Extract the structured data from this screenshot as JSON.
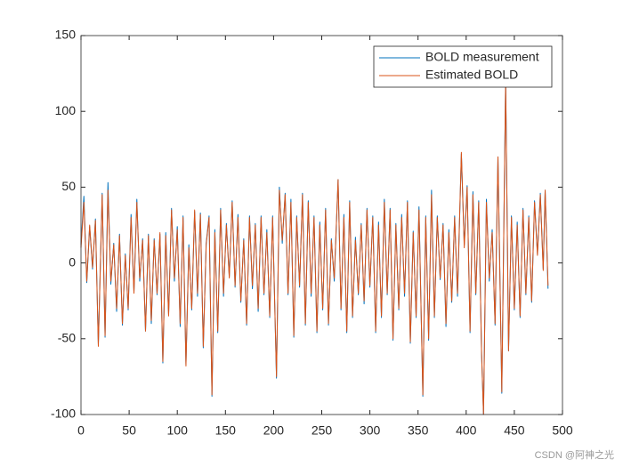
{
  "chart_data": {
    "type": "line",
    "x": [
      0,
      3,
      6,
      9,
      12,
      15,
      18,
      22,
      25,
      28,
      31,
      34,
      37,
      40,
      43,
      46,
      49,
      52,
      55,
      58,
      61,
      64,
      67,
      70,
      73,
      76,
      79,
      82,
      85,
      88,
      91,
      94,
      97,
      100,
      103,
      106,
      109,
      112,
      115,
      118,
      121,
      124,
      127,
      130,
      133,
      136,
      139,
      142,
      145,
      148,
      151,
      154,
      157,
      160,
      163,
      166,
      169,
      172,
      175,
      178,
      181,
      184,
      187,
      190,
      193,
      196,
      199,
      203,
      206,
      209,
      212,
      215,
      218,
      221,
      224,
      227,
      230,
      233,
      236,
      239,
      242,
      245,
      248,
      251,
      254,
      257,
      260,
      263,
      267,
      270,
      273,
      276,
      279,
      282,
      285,
      288,
      291,
      294,
      297,
      300,
      303,
      306,
      309,
      312,
      315,
      318,
      321,
      324,
      327,
      330,
      333,
      336,
      339,
      342,
      345,
      348,
      351,
      355,
      358,
      361,
      364,
      367,
      370,
      373,
      376,
      379,
      382,
      385,
      388,
      391,
      395,
      398,
      401,
      404,
      407,
      410,
      413,
      416,
      418,
      421,
      424,
      427,
      430,
      433,
      437,
      441,
      444,
      447,
      450,
      453,
      456,
      459,
      462,
      465,
      468,
      471,
      474,
      477,
      480,
      482,
      485
    ],
    "series": [
      {
        "name": "BOLD measurement",
        "color": "#0072bd",
        "values": [
          12,
          44,
          -13,
          24,
          -4,
          29,
          -54,
          46,
          -49,
          53,
          -14,
          13,
          -32,
          19,
          -41,
          6,
          -31,
          32,
          -19,
          42,
          -12,
          16,
          -45,
          19,
          -40,
          16,
          -21,
          19,
          -66,
          20,
          -34,
          36,
          -12,
          24,
          -42,
          31,
          -67,
          12,
          -31,
          34,
          -22,
          33,
          -56,
          13,
          31,
          -88,
          22,
          -46,
          36,
          -22,
          26,
          -9,
          41,
          -16,
          32,
          -26,
          16,
          -41,
          31,
          -17,
          26,
          -32,
          31,
          -21,
          22,
          -36,
          31,
          -76,
          50,
          13,
          46,
          -21,
          42,
          -49,
          31,
          -16,
          46,
          -41,
          41,
          -22,
          31,
          -46,
          27,
          -31,
          36,
          -41,
          16,
          -12,
          55,
          -31,
          32,
          -46,
          41,
          -36,
          17,
          -21,
          26,
          -27,
          36,
          -16,
          31,
          -46,
          27,
          -36,
          42,
          -21,
          36,
          -51,
          26,
          -31,
          32,
          -22,
          41,
          -53,
          21,
          -36,
          37,
          -88,
          31,
          -51,
          48,
          -36,
          31,
          -11,
          26,
          -42,
          22,
          -26,
          31,
          -22,
          72,
          12,
          51,
          -46,
          47,
          -21,
          41,
          -60,
          -100,
          42,
          -12,
          22,
          -41,
          70,
          -86,
          122,
          -58,
          31,
          -31,
          27,
          -36,
          36,
          -21,
          31,
          -26,
          41,
          6,
          46,
          -4,
          48,
          -17
        ]
      },
      {
        "name": "Estimated BOLD",
        "color": "#d95319",
        "values": [
          10,
          40,
          -12,
          25,
          -3,
          28,
          -55,
          45,
          -48,
          48,
          -12,
          12,
          -30,
          18,
          -40,
          5,
          -30,
          30,
          -20,
          40,
          -10,
          15,
          -45,
          18,
          -38,
          15,
          -20,
          20,
          -65,
          18,
          -35,
          35,
          -10,
          22,
          -40,
          30,
          -68,
          10,
          -30,
          35,
          -20,
          32,
          -55,
          12,
          30,
          -87,
          20,
          -45,
          35,
          -20,
          25,
          -10,
          40,
          -15,
          30,
          -25,
          15,
          -40,
          30,
          -15,
          25,
          -30,
          30,
          -20,
          20,
          -35,
          30,
          -75,
          48,
          15,
          45,
          -20,
          40,
          -48,
          30,
          -15,
          45,
          -40,
          40,
          -20,
          30,
          -45,
          25,
          -30,
          35,
          -40,
          15,
          -10,
          55,
          -30,
          30,
          -45,
          40,
          -35,
          15,
          -20,
          25,
          -25,
          35,
          -15,
          30,
          -45,
          25,
          -35,
          40,
          -20,
          35,
          -50,
          25,
          -30,
          30,
          -20,
          40,
          -52,
          20,
          -35,
          35,
          -87,
          30,
          -50,
          45,
          -35,
          30,
          -10,
          25,
          -40,
          20,
          -25,
          30,
          -20,
          73,
          10,
          50,
          -45,
          45,
          -20,
          40,
          -60,
          -100,
          40,
          -10,
          20,
          -40,
          70,
          -85,
          120,
          -58,
          30,
          -30,
          25,
          -35,
          35,
          -20,
          30,
          -25,
          40,
          5,
          45,
          -5,
          48,
          -15
        ]
      }
    ],
    "xlim": [
      0,
      500
    ],
    "xticks": [
      0,
      50,
      100,
      150,
      200,
      250,
      300,
      350,
      400,
      450,
      500
    ],
    "ylim": [
      -100,
      150
    ],
    "yticks": [
      -100,
      -50,
      0,
      50,
      100,
      150
    ],
    "legend": "top-right",
    "watermark": "CSDN @阿神之光"
  }
}
